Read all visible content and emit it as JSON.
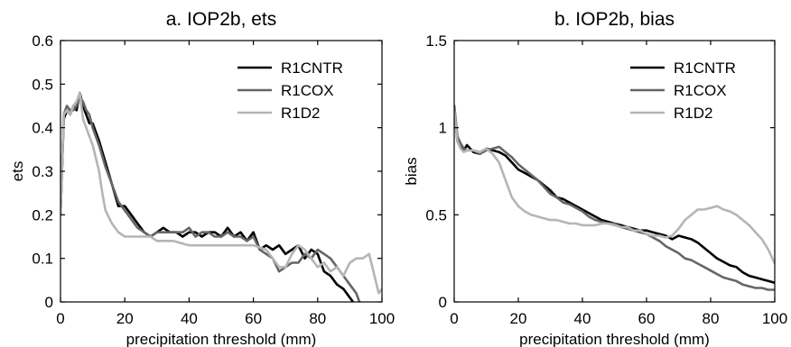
{
  "chart_data": [
    {
      "type": "line",
      "title": "a. IOP2b, ets",
      "xlabel": "precipitation threshold (mm)",
      "ylabel": "ets",
      "xlim": [
        0,
        100
      ],
      "ylim": [
        0,
        0.6
      ],
      "xticks": [
        "0",
        "20",
        "40",
        "60",
        "80",
        "100"
      ],
      "yticks": [
        "0",
        "0.1",
        "0.2",
        "0.3",
        "0.4",
        "0.5",
        "0.6"
      ],
      "legend_position": "top-right",
      "series": [
        {
          "name": "R1CNTR",
          "color": "#000000",
          "x": [
            0,
            1,
            2,
            3,
            4,
            5,
            6,
            7,
            8,
            9,
            10,
            12,
            14,
            16,
            18,
            20,
            22,
            24,
            26,
            28,
            30,
            32,
            34,
            36,
            38,
            40,
            42,
            44,
            46,
            48,
            50,
            52,
            54,
            56,
            58,
            60,
            62,
            64,
            66,
            68,
            70,
            72,
            74,
            76,
            78,
            80,
            82,
            84,
            86,
            88,
            90,
            91
          ],
          "y": [
            0.2,
            0.42,
            0.44,
            0.43,
            0.45,
            0.44,
            0.48,
            0.45,
            0.43,
            0.41,
            0.41,
            0.37,
            0.32,
            0.27,
            0.22,
            0.22,
            0.2,
            0.18,
            0.16,
            0.15,
            0.16,
            0.17,
            0.16,
            0.16,
            0.15,
            0.16,
            0.16,
            0.15,
            0.16,
            0.16,
            0.15,
            0.17,
            0.15,
            0.16,
            0.14,
            0.16,
            0.12,
            0.13,
            0.12,
            0.13,
            0.11,
            0.12,
            0.13,
            0.1,
            0.12,
            0.11,
            0.07,
            0.06,
            0.04,
            0.03,
            0.01,
            0.0
          ]
        },
        {
          "name": "R1COX",
          "color": "#666666",
          "x": [
            0,
            1,
            2,
            3,
            4,
            5,
            6,
            7,
            8,
            9,
            10,
            12,
            14,
            16,
            18,
            20,
            22,
            24,
            26,
            28,
            30,
            32,
            34,
            36,
            38,
            40,
            42,
            44,
            46,
            48,
            50,
            52,
            54,
            56,
            58,
            60,
            62,
            64,
            66,
            68,
            70,
            72,
            74,
            76,
            78,
            80,
            82,
            84,
            86,
            88,
            90,
            92,
            93
          ],
          "y": [
            0.2,
            0.43,
            0.45,
            0.44,
            0.44,
            0.45,
            0.47,
            0.46,
            0.44,
            0.43,
            0.4,
            0.36,
            0.31,
            0.27,
            0.23,
            0.21,
            0.19,
            0.17,
            0.16,
            0.15,
            0.16,
            0.16,
            0.16,
            0.16,
            0.16,
            0.17,
            0.15,
            0.16,
            0.16,
            0.15,
            0.15,
            0.16,
            0.15,
            0.15,
            0.14,
            0.15,
            0.12,
            0.11,
            0.1,
            0.07,
            0.08,
            0.09,
            0.09,
            0.11,
            0.1,
            0.12,
            0.11,
            0.1,
            0.08,
            0.06,
            0.04,
            0.02,
            0.0
          ]
        },
        {
          "name": "R1D2",
          "color": "#b5b5b5",
          "x": [
            0,
            1,
            2,
            3,
            4,
            5,
            6,
            7,
            8,
            9,
            10,
            11,
            12,
            13,
            14,
            16,
            18,
            20,
            22,
            24,
            26,
            28,
            30,
            35,
            40,
            45,
            50,
            55,
            60,
            64,
            66,
            68,
            70,
            72,
            74,
            76,
            78,
            80,
            82,
            84,
            86,
            88,
            90,
            92,
            94,
            96,
            98,
            99,
            100
          ],
          "y": [
            0.2,
            0.43,
            0.44,
            0.43,
            0.45,
            0.46,
            0.48,
            0.42,
            0.4,
            0.38,
            0.36,
            0.33,
            0.3,
            0.25,
            0.21,
            0.18,
            0.16,
            0.15,
            0.15,
            0.15,
            0.15,
            0.15,
            0.14,
            0.14,
            0.13,
            0.13,
            0.13,
            0.13,
            0.13,
            0.12,
            0.1,
            0.08,
            0.08,
            0.11,
            0.13,
            0.12,
            0.1,
            0.08,
            0.09,
            0.07,
            0.08,
            0.06,
            0.09,
            0.1,
            0.1,
            0.11,
            0.05,
            0.02,
            0.03
          ]
        }
      ]
    },
    {
      "type": "line",
      "title": "b. IOP2b, bias",
      "xlabel": "precipitation threshold (mm)",
      "ylabel": "bias",
      "xlim": [
        0,
        100
      ],
      "ylim": [
        0,
        1.5
      ],
      "xticks": [
        "0",
        "20",
        "40",
        "60",
        "80",
        "100"
      ],
      "yticks": [
        "0",
        "0.5",
        "1",
        "1.5"
      ],
      "legend_position": "top-right",
      "series": [
        {
          "name": "R1CNTR",
          "color": "#000000",
          "x": [
            0,
            1,
            2,
            3,
            4,
            6,
            8,
            10,
            12,
            14,
            16,
            18,
            20,
            22,
            24,
            26,
            28,
            30,
            32,
            34,
            36,
            38,
            40,
            42,
            44,
            46,
            48,
            50,
            52,
            54,
            56,
            58,
            60,
            62,
            64,
            66,
            68,
            70,
            72,
            74,
            76,
            78,
            80,
            82,
            84,
            86,
            88,
            90,
            92,
            94,
            96,
            98,
            100
          ],
          "y": [
            1.1,
            0.92,
            0.89,
            0.87,
            0.9,
            0.86,
            0.85,
            0.88,
            0.87,
            0.86,
            0.84,
            0.8,
            0.76,
            0.74,
            0.72,
            0.7,
            0.67,
            0.64,
            0.6,
            0.59,
            0.57,
            0.55,
            0.53,
            0.51,
            0.49,
            0.47,
            0.46,
            0.45,
            0.44,
            0.43,
            0.42,
            0.41,
            0.41,
            0.4,
            0.39,
            0.38,
            0.36,
            0.38,
            0.37,
            0.36,
            0.34,
            0.31,
            0.28,
            0.25,
            0.23,
            0.21,
            0.2,
            0.17,
            0.15,
            0.14,
            0.13,
            0.12,
            0.11
          ]
        },
        {
          "name": "R1COX",
          "color": "#666666",
          "x": [
            0,
            1,
            2,
            3,
            4,
            6,
            8,
            10,
            12,
            14,
            16,
            18,
            20,
            22,
            24,
            26,
            28,
            30,
            32,
            34,
            36,
            38,
            40,
            42,
            44,
            46,
            48,
            50,
            52,
            54,
            56,
            58,
            60,
            62,
            64,
            66,
            68,
            70,
            72,
            74,
            76,
            78,
            80,
            82,
            84,
            86,
            88,
            90,
            92,
            94,
            96,
            98,
            100
          ],
          "y": [
            1.13,
            0.95,
            0.91,
            0.88,
            0.87,
            0.87,
            0.85,
            0.87,
            0.88,
            0.89,
            0.86,
            0.83,
            0.79,
            0.76,
            0.73,
            0.7,
            0.66,
            0.62,
            0.6,
            0.57,
            0.56,
            0.54,
            0.52,
            0.49,
            0.47,
            0.46,
            0.45,
            0.45,
            0.43,
            0.42,
            0.41,
            0.4,
            0.39,
            0.37,
            0.35,
            0.32,
            0.3,
            0.28,
            0.25,
            0.24,
            0.22,
            0.2,
            0.18,
            0.16,
            0.14,
            0.13,
            0.12,
            0.1,
            0.09,
            0.08,
            0.08,
            0.07,
            0.07
          ]
        },
        {
          "name": "R1D2",
          "color": "#b5b5b5",
          "x": [
            0,
            1,
            2,
            3,
            4,
            6,
            8,
            10,
            12,
            14,
            16,
            18,
            20,
            22,
            24,
            26,
            28,
            30,
            32,
            34,
            36,
            38,
            40,
            42,
            44,
            46,
            48,
            50,
            52,
            54,
            56,
            58,
            60,
            62,
            64,
            66,
            68,
            70,
            72,
            74,
            76,
            78,
            80,
            82,
            84,
            86,
            88,
            90,
            92,
            94,
            96,
            98,
            100
          ],
          "y": [
            1.1,
            0.92,
            0.88,
            0.86,
            0.87,
            0.87,
            0.86,
            0.88,
            0.85,
            0.8,
            0.7,
            0.6,
            0.55,
            0.52,
            0.5,
            0.49,
            0.48,
            0.47,
            0.47,
            0.46,
            0.45,
            0.45,
            0.44,
            0.44,
            0.44,
            0.45,
            0.45,
            0.44,
            0.43,
            0.43,
            0.41,
            0.41,
            0.39,
            0.38,
            0.38,
            0.37,
            0.38,
            0.42,
            0.47,
            0.5,
            0.53,
            0.53,
            0.54,
            0.55,
            0.53,
            0.52,
            0.5,
            0.47,
            0.44,
            0.4,
            0.36,
            0.3,
            0.22
          ]
        }
      ]
    }
  ]
}
